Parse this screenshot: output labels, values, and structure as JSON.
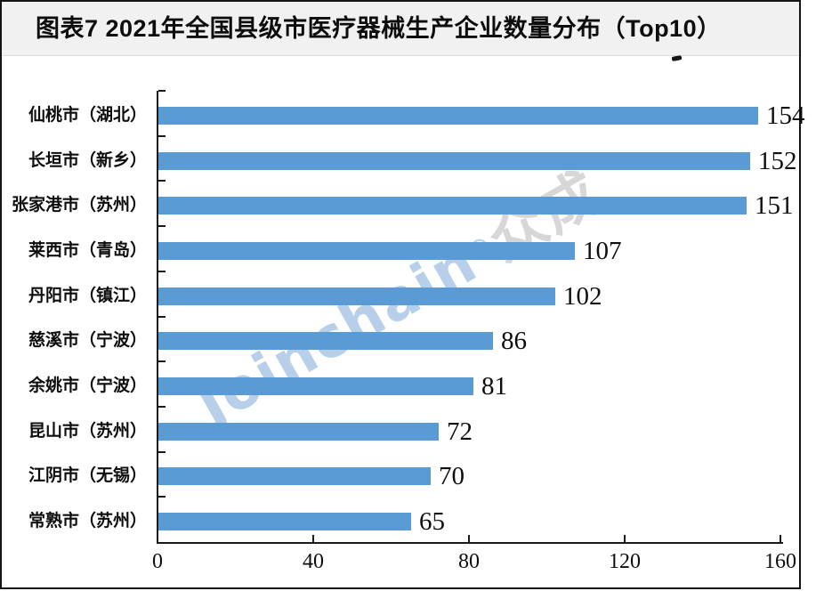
{
  "title": "图表7 2021年全国县级市医疗器械生产企业数量分布（Top10）",
  "watermark": {
    "latin": "Joinchain",
    "reg": "®",
    "cjk": "众成"
  },
  "colors": {
    "bar": "#5b9bd5",
    "axis": "#1a1a1a",
    "title_band_bg": "#f1f1f1",
    "watermark_blue": "#b7cfe9",
    "watermark_gray": "#d7d7d7"
  },
  "chart_data": {
    "type": "bar",
    "orientation": "horizontal",
    "title": "图表7 2021年全国县级市医疗器械生产企业数量分布（Top10）",
    "categories": [
      "仙桃市（湖北）",
      "长垣市（新乡）",
      "张家港市（苏州）",
      "莱西市（青岛）",
      "丹阳市（镇江）",
      "慈溪市（宁波）",
      "余姚市（宁波）",
      "昆山市（苏州）",
      "江阴市（无锡）",
      "常熟市（苏州）"
    ],
    "values": [
      154,
      152,
      151,
      107,
      102,
      86,
      81,
      72,
      70,
      65
    ],
    "value_labels": [
      "154",
      "152",
      "151",
      "107",
      "102",
      "86",
      "81",
      "72",
      "70",
      "65"
    ],
    "x_ticks": [
      0,
      40,
      80,
      120,
      160
    ],
    "xlim": [
      0,
      160
    ],
    "xlabel": "",
    "ylabel": "",
    "grid": false,
    "legend": false,
    "bar_color": "#5b9bd5"
  }
}
